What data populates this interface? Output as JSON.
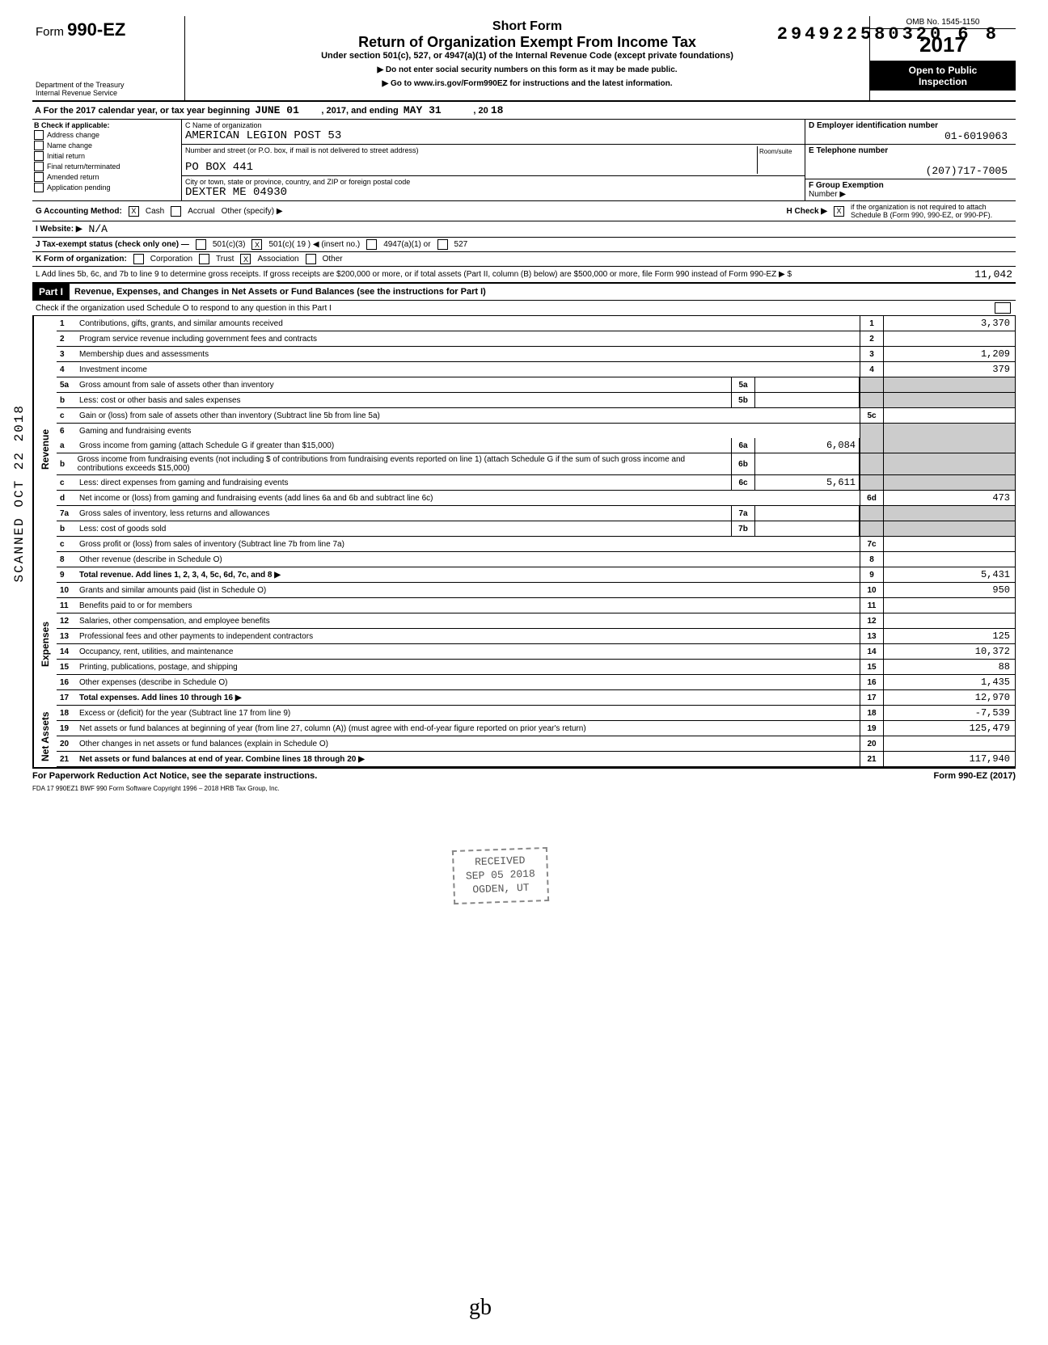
{
  "top_number": "294922580320 6  8",
  "header": {
    "form_prefix": "Form",
    "form_number": "990-EZ",
    "dept1": "Department of the Treasury",
    "dept2": "Internal Revenue Service",
    "short": "Short Form",
    "title": "Return of Organization Exempt From Income Tax",
    "sub": "Under section 501(c), 527, or 4947(a)(1) of the Internal Revenue Code (except private foundations)",
    "note1": "▶ Do not enter social security numbers on this form as it may be made public.",
    "note2": "▶ Go to www.irs.gov/Form990EZ for instructions and the latest information.",
    "omb": "OMB No. 1545-1150",
    "year": "2017",
    "public1": "Open to Public",
    "public2": "Inspection"
  },
  "lineA": {
    "prefix": "A  For the 2017 calendar year, or tax year beginning",
    "begin": "JUNE  01",
    "mid": ", 2017, and ending",
    "end": "MAY  31",
    "suffix": ", 20",
    "yr": "18"
  },
  "colB": {
    "title": "B  Check if applicable:",
    "items": [
      "Address change",
      "Name change",
      "Initial return",
      "Final return/terminated",
      "Amended return",
      "Application pending"
    ]
  },
  "colC": {
    "c_label": "C  Name of organization",
    "org": "AMERICAN LEGION POST 53",
    "street_label": "Number and street (or P.O. box, if mail is not delivered to street address)",
    "room": "Room/suite",
    "street": "PO BOX 441",
    "city_label": "City or town, state or province, country, and ZIP or foreign postal code",
    "city": "DEXTER ME 04930"
  },
  "colD": {
    "d_label": "D  Employer identification number",
    "ein": "01-6019063",
    "e_label": "E  Telephone number",
    "phone": "(207)717-7005",
    "f_label": "F  Group Exemption",
    "f_sub": "Number  ▶"
  },
  "rowG": {
    "label": "G  Accounting Method:",
    "cash": "Cash",
    "accrual": "Accrual",
    "other": "Other (specify) ▶",
    "h_label": "H  Check ▶",
    "h_text": "if the organization is not required to attach Schedule B (Form 990, 990-EZ, or 990-PF)."
  },
  "rowI": {
    "label": "I   Website: ▶",
    "val": "N/A"
  },
  "rowJ": {
    "label": "J  Tax-exempt status (check only one) —",
    "opts": [
      "501(c)(3)",
      "501(c)( 19 ) ◀ (insert no.)",
      "4947(a)(1) or",
      "527"
    ]
  },
  "rowK": {
    "label": "K  Form of organization:",
    "opts": [
      "Corporation",
      "Trust",
      "Association",
      "Other"
    ]
  },
  "rowL": {
    "text": "L  Add lines 5b, 6c, and 7b to line 9 to determine gross receipts. If gross receipts are $200,000 or more, or if total assets (Part II, column (B) below) are $500,000 or more, file Form 990 instead of Form 990-EZ",
    "arrow": "▶  $",
    "val": "11,042"
  },
  "part1": {
    "hdr": "Part I",
    "title": "Revenue, Expenses, and Changes in Net Assets or Fund Balances (see the instructions for Part I)",
    "check": "Check if the organization used Schedule O to respond to any question in this Part I"
  },
  "revenue_label": "Revenue",
  "expenses_label": "Expenses",
  "netassets_label": "Net Assets",
  "lines": {
    "l1": {
      "n": "1",
      "t": "Contributions, gifts, grants, and similar amounts received",
      "v": "3,370"
    },
    "l2": {
      "n": "2",
      "t": "Program service revenue including government fees and contracts",
      "v": ""
    },
    "l3": {
      "n": "3",
      "t": "Membership dues and assessments",
      "v": "1,209"
    },
    "l4": {
      "n": "4",
      "t": "Investment income",
      "v": "379"
    },
    "l5a": {
      "n": "5a",
      "t": "Gross amount from sale of assets other than inventory",
      "m": "5a",
      "mv": ""
    },
    "l5b": {
      "n": "b",
      "t": "Less: cost or other basis and sales expenses",
      "m": "5b",
      "mv": ""
    },
    "l5c": {
      "n": "c",
      "t": "Gain or (loss) from sale of assets other than inventory (Subtract line 5b from line 5a)",
      "nc": "5c",
      "v": ""
    },
    "l6": {
      "n": "6",
      "t": "Gaming and fundraising events"
    },
    "l6a": {
      "n": "a",
      "t": "Gross income from gaming (attach Schedule G if greater than $15,000)",
      "m": "6a",
      "mv": "6,084"
    },
    "l6b": {
      "n": "b",
      "t": "Gross income from fundraising events (not including  $               of contributions from fundraising events reported on line 1) (attach Schedule G if the sum of such gross income and contributions exceeds $15,000)",
      "m": "6b",
      "mv": ""
    },
    "l6c": {
      "n": "c",
      "t": "Less: direct expenses from gaming and fundraising events",
      "m": "6c",
      "mv": "5,611"
    },
    "l6d": {
      "n": "d",
      "t": "Net income or (loss) from gaming and fundraising events (add lines 6a and 6b and subtract line 6c)",
      "nc": "6d",
      "v": "473"
    },
    "l7a": {
      "n": "7a",
      "t": "Gross sales of inventory, less returns and allowances",
      "m": "7a",
      "mv": ""
    },
    "l7b": {
      "n": "b",
      "t": "Less: cost of goods sold",
      "m": "7b",
      "mv": ""
    },
    "l7c": {
      "n": "c",
      "t": "Gross profit or (loss) from sales of inventory (Subtract line 7b from line 7a)",
      "nc": "7c",
      "v": ""
    },
    "l8": {
      "n": "8",
      "t": "Other revenue (describe in Schedule O)",
      "v": ""
    },
    "l9": {
      "n": "9",
      "t": "Total revenue. Add lines 1, 2, 3, 4, 5c, 6d, 7c, and 8",
      "v": "5,431",
      "bold": true
    },
    "l10": {
      "n": "10",
      "t": "Grants and similar amounts paid (list in Schedule O)",
      "v": "950"
    },
    "l11": {
      "n": "11",
      "t": "Benefits paid to or for members",
      "v": ""
    },
    "l12": {
      "n": "12",
      "t": "Salaries, other compensation, and employee benefits",
      "v": ""
    },
    "l13": {
      "n": "13",
      "t": "Professional fees and other payments to independent contractors",
      "v": "125"
    },
    "l14": {
      "n": "14",
      "t": "Occupancy, rent, utilities, and maintenance",
      "v": "10,372"
    },
    "l15": {
      "n": "15",
      "t": "Printing, publications, postage, and shipping",
      "v": "88"
    },
    "l16": {
      "n": "16",
      "t": "Other expenses (describe in Schedule O)",
      "v": "1,435"
    },
    "l17": {
      "n": "17",
      "t": "Total expenses. Add lines 10 through 16",
      "v": "12,970",
      "bold": true
    },
    "l18": {
      "n": "18",
      "t": "Excess or (deficit) for the year (Subtract line 17 from line 9)",
      "v": "-7,539"
    },
    "l19": {
      "n": "19",
      "t": "Net assets or fund balances at beginning of year (from line 27, column (A)) (must agree with end-of-year figure reported on prior year's return)",
      "v": "125,479"
    },
    "l20": {
      "n": "20",
      "t": "Other changes in net assets or fund balances (explain in Schedule O)",
      "v": ""
    },
    "l21": {
      "n": "21",
      "t": "Net assets or fund balances at end of year. Combine lines 18 through 20",
      "v": "117,940",
      "bold": true
    }
  },
  "footer": {
    "left": "For Paperwork Reduction Act Notice, see the separate instructions.",
    "right": "Form 990-EZ (2017)",
    "bottom": "FDA    17   990EZ1      BWF 990      Form Software Copyright 1996 – 2018 HRB Tax Group, Inc."
  },
  "stamp": {
    "l1": "RECEIVED",
    "l2": "SEP 05 2018",
    "l3": "OGDEN, UT"
  },
  "scanned": "SCANNED OCT 22 2018",
  "sig": "gb"
}
